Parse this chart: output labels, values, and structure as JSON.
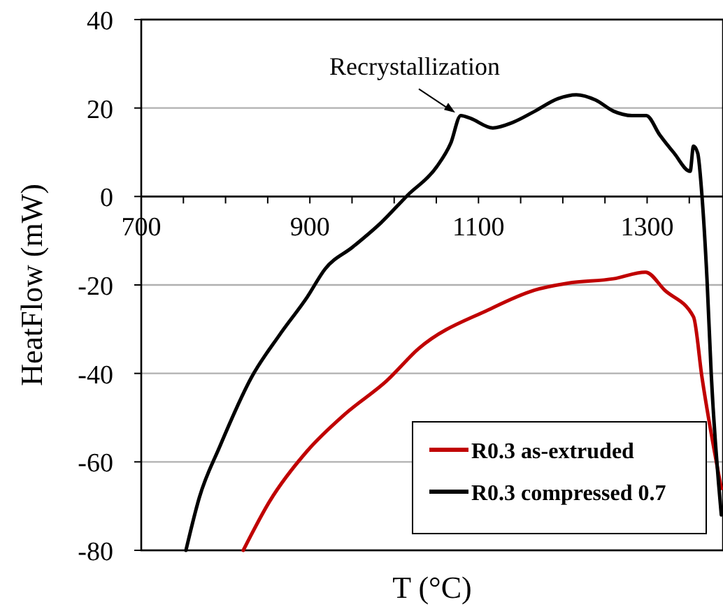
{
  "chart_data": {
    "type": "line",
    "xlabel": "T (°C)",
    "ylabel": "HeatFlow (mW)",
    "xlim": [
      700,
      1390
    ],
    "ylim": [
      -80,
      40
    ],
    "xticks": [
      700,
      {
        "value": 750,
        "label": null
      },
      {
        "value": 800,
        "label": null
      },
      {
        "value": 850,
        "label": null
      },
      900,
      {
        "value": 950,
        "label": null
      },
      {
        "value": 1000,
        "label": null
      },
      {
        "value": 1050,
        "label": null
      },
      1100,
      {
        "value": 1150,
        "label": null
      },
      {
        "value": 1200,
        "label": null
      },
      {
        "value": 1250,
        "label": null
      },
      1300,
      {
        "value": 1350,
        "label": null
      }
    ],
    "yticks": [
      -80,
      -60,
      -40,
      -20,
      0,
      20,
      40
    ],
    "grid": "y",
    "legend": "bottom right",
    "line_style": "solid",
    "annotations": [
      {
        "text": "Recrystallization",
        "x": 1079,
        "y": 18
      }
    ],
    "series": [
      {
        "name": "R0.3 as-extruded",
        "color": "#c00000",
        "x": [
          821,
          852,
          897,
          941,
          991,
          1029,
          1112,
          1166,
          1206,
          1260,
          1298,
          1321,
          1355,
          1365,
          1388
        ],
        "values": [
          -80,
          -69,
          -57.5,
          -49.3,
          -41.7,
          -34.4,
          -25.6,
          -21.2,
          -19.6,
          -18.6,
          -17.1,
          -21.2,
          -27.2,
          -40.8,
          -66
        ]
      },
      {
        "name": "R0.3 compressed 0.7",
        "color": "#000000",
        "x": [
          753,
          769,
          793,
          831,
          864,
          897,
          918,
          951,
          984,
          1016,
          1050,
          1067,
          1079,
          1090,
          1117,
          1140,
          1167,
          1194,
          1216,
          1239,
          1260,
          1282,
          1299,
          1315,
          1332,
          1351,
          1355,
          1360,
          1365,
          1371,
          1376,
          1388
        ],
        "values": [
          -80,
          -68,
          -56.6,
          -40.8,
          -31.3,
          -22.7,
          -16.4,
          -11.4,
          -6,
          0.3,
          6.6,
          12,
          18.3,
          17.7,
          15.5,
          16.7,
          19.3,
          22.1,
          23,
          21.8,
          19.3,
          18.3,
          18.3,
          13.9,
          9.8,
          5.7,
          11.4,
          9.8,
          0.3,
          -18.6,
          -40,
          -72
        ]
      }
    ]
  }
}
